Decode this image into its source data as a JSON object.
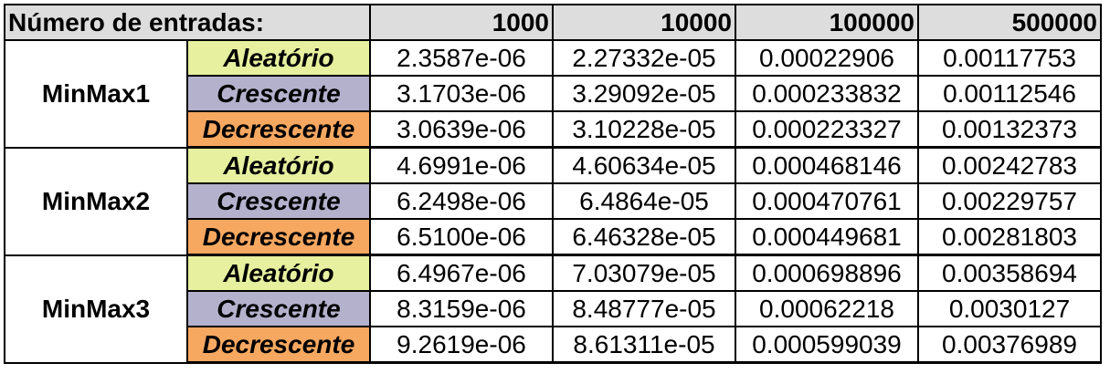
{
  "header": {
    "label": "Número de entradas:",
    "sizes": [
      "1000",
      "10000",
      "100000",
      "500000"
    ]
  },
  "groups": [
    {
      "name": "MinMax1",
      "rows": [
        {
          "category": "Aleatório",
          "values": [
            "2.3587e-06",
            "2.27332e-05",
            "0.00022906",
            "0.00117753"
          ]
        },
        {
          "category": "Crescente",
          "values": [
            "3.1703e-06",
            "3.29092e-05",
            "0.000233832",
            "0.00112546"
          ]
        },
        {
          "category": "Decrescente",
          "values": [
            "3.0639e-06",
            "3.10228e-05",
            "0.000223327",
            "0.00132373"
          ]
        }
      ]
    },
    {
      "name": "MinMax2",
      "rows": [
        {
          "category": "Aleatório",
          "values": [
            "4.6991e-06",
            "4.60634e-05",
            "0.000468146",
            "0.00242783"
          ]
        },
        {
          "category": "Crescente",
          "values": [
            "6.2498e-06",
            "6.4864e-05",
            "0.000470761",
            "0.00229757"
          ]
        },
        {
          "category": "Decrescente",
          "values": [
            "6.5100e-06",
            "6.46328e-05",
            "0.000449681",
            "0.00281803"
          ]
        }
      ]
    },
    {
      "name": "MinMax3",
      "rows": [
        {
          "category": "Aleatório",
          "values": [
            "6.4967e-06",
            "7.03079e-05",
            "0.000698896",
            "0.00358694"
          ]
        },
        {
          "category": "Crescente",
          "values": [
            "8.3159e-06",
            "8.48777e-05",
            "0.00062218",
            "0.0030127"
          ]
        },
        {
          "category": "Decrescente",
          "values": [
            "9.2619e-06",
            "8.61311e-05",
            "0.000599039",
            "0.00376989"
          ]
        }
      ]
    }
  ],
  "colors": {
    "aleatorio": "#e6f09e",
    "crescente": "#b4b1cd",
    "decrescente": "#f7a860",
    "header": "#dddddd"
  }
}
